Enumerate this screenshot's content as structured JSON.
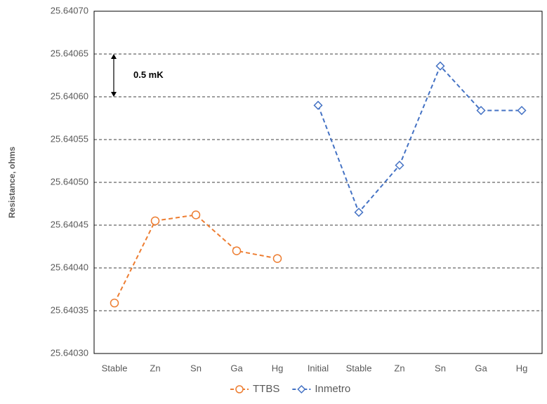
{
  "chart_data": {
    "type": "line",
    "y_label": "Resistance, ohms",
    "categories": [
      "Stable",
      "Zn",
      "Sn",
      "Ga",
      "Hg",
      "Initial",
      "Stable",
      "Zn",
      "Sn",
      "Ga",
      "Hg"
    ],
    "series": [
      {
        "name": "TTBS",
        "color": "#ed7d31",
        "marker": "circle",
        "values": [
          25.640359,
          25.640455,
          25.640462,
          25.64042,
          25.640411,
          null,
          null,
          null,
          null,
          null,
          null
        ]
      },
      {
        "name": "Inmetro",
        "color": "#4472c4",
        "marker": "diamond",
        "values": [
          null,
          null,
          null,
          null,
          null,
          25.64059,
          25.640465,
          25.64052,
          25.640636,
          25.640584,
          25.640584
        ]
      }
    ],
    "ylim": [
      25.6403,
      25.6407
    ],
    "yticks": [
      {
        "value": 25.6403,
        "label": "25.64030"
      },
      {
        "value": 25.64035,
        "label": "25.64035"
      },
      {
        "value": 25.6404,
        "label": "25.64040"
      },
      {
        "value": 25.64045,
        "label": "25.64045"
      },
      {
        "value": 25.6405,
        "label": "25.64050"
      },
      {
        "value": 25.64055,
        "label": "25.64055"
      },
      {
        "value": 25.6406,
        "label": "25.64060"
      },
      {
        "value": 25.64065,
        "label": "25.64065"
      },
      {
        "value": 25.6407,
        "label": "25.64070"
      }
    ],
    "grid": true,
    "annotation": {
      "text": "0.5 mK",
      "range": [
        25.64065,
        25.6406
      ]
    },
    "legend": "bottom"
  }
}
